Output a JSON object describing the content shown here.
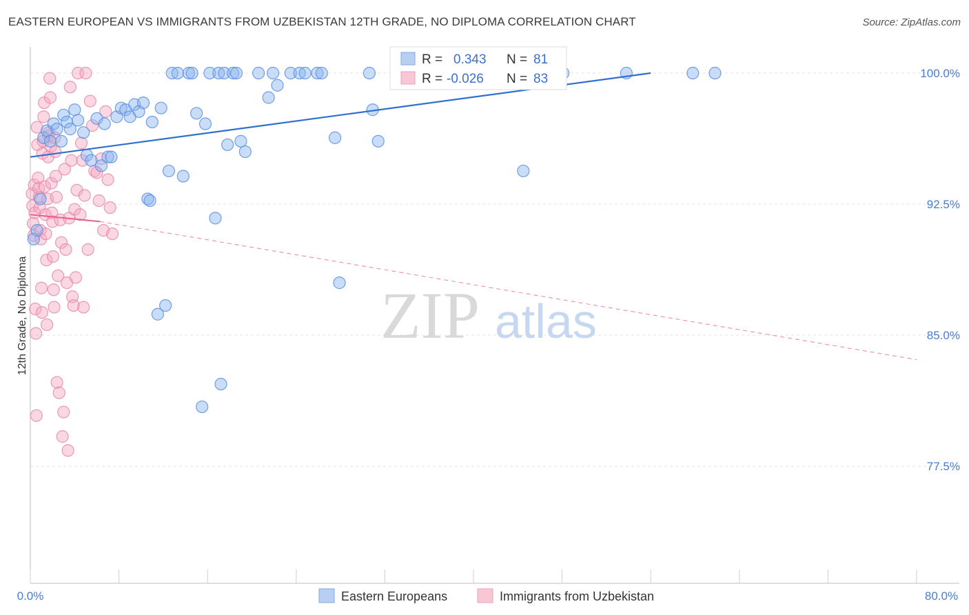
{
  "header": {
    "title": "EASTERN EUROPEAN VS IMMIGRANTS FROM UZBEKISTAN 12TH GRADE, NO DIPLOMA CORRELATION CHART",
    "source": "Source: ZipAtlas.com"
  },
  "watermark": {
    "zip": "ZIP",
    "atlas": "atlas"
  },
  "colors": {
    "blue": "#8ab4f0",
    "blue_stroke": "#5b8fe0",
    "blue_line": "#2f6fd0",
    "pink": "#f4a9c1",
    "pink_stroke": "#e88aa8",
    "pink_line": "#e8608d",
    "axis_label": "#4a7bd1",
    "grid": "#e3e3e3"
  },
  "chart_data": {
    "type": "scatter",
    "title": "EASTERN EUROPEAN VS IMMIGRANTS FROM UZBEKISTAN 12TH GRADE, NO DIPLOMA CORRELATION CHART",
    "ylabel": "12th Grade, No Diploma",
    "xlabel": "",
    "xlim": [
      0,
      80
    ],
    "ylim": [
      70.8,
      101.5
    ],
    "x_tick_labels": [
      "0.0%",
      "80.0%"
    ],
    "y_ticks": [
      77.5,
      85.0,
      92.5,
      100.0
    ],
    "y_tick_labels": [
      "77.5%",
      "85.0%",
      "92.5%",
      "100.0%"
    ],
    "legend": [
      {
        "name": "Eastern Europeans",
        "r_label": "R =",
        "r_value": "0.343",
        "n_label": "N =",
        "n_value": "81"
      },
      {
        "name": "Immigrants from Uzbekistan",
        "r_label": "R =",
        "r_value": "-0.026",
        "n_label": "N =",
        "n_value": "83"
      }
    ],
    "series": [
      {
        "name": "Eastern Europeans",
        "trend": {
          "x": [
            0.0,
            56.0
          ],
          "y": [
            95.2,
            100.0
          ]
        },
        "points": [
          [
            0.3,
            90.5
          ],
          [
            0.6,
            91.0
          ],
          [
            0.9,
            92.8
          ],
          [
            1.2,
            96.3
          ],
          [
            1.5,
            96.7
          ],
          [
            1.8,
            96.1
          ],
          [
            2.1,
            97.1
          ],
          [
            2.4,
            96.8
          ],
          [
            2.8,
            96.1
          ],
          [
            3.0,
            97.6
          ],
          [
            3.3,
            97.2
          ],
          [
            3.6,
            96.8
          ],
          [
            4.0,
            97.9
          ],
          [
            4.3,
            97.3
          ],
          [
            4.8,
            96.6
          ],
          [
            5.1,
            95.3
          ],
          [
            5.5,
            95.0
          ],
          [
            6.0,
            97.4
          ],
          [
            6.4,
            94.7
          ],
          [
            6.7,
            97.1
          ],
          [
            7.0,
            95.2
          ],
          [
            7.3,
            95.2
          ],
          [
            7.8,
            97.5
          ],
          [
            8.2,
            98.0
          ],
          [
            8.6,
            97.9
          ],
          [
            9.0,
            97.5
          ],
          [
            9.4,
            98.2
          ],
          [
            9.8,
            97.8
          ],
          [
            10.2,
            98.3
          ],
          [
            10.6,
            92.8
          ],
          [
            10.8,
            92.7
          ],
          [
            11.0,
            97.2
          ],
          [
            11.5,
            86.2
          ],
          [
            11.8,
            98.0
          ],
          [
            12.2,
            86.7
          ],
          [
            12.5,
            94.4
          ],
          [
            12.8,
            100.0
          ],
          [
            13.3,
            100.0
          ],
          [
            13.8,
            94.1
          ],
          [
            14.3,
            100.0
          ],
          [
            14.6,
            100.0
          ],
          [
            15.0,
            97.7
          ],
          [
            15.5,
            80.9
          ],
          [
            15.8,
            97.1
          ],
          [
            16.2,
            100.0
          ],
          [
            16.7,
            91.7
          ],
          [
            17.0,
            100.0
          ],
          [
            17.2,
            82.2
          ],
          [
            17.5,
            100.0
          ],
          [
            17.8,
            95.9
          ],
          [
            18.3,
            100.0
          ],
          [
            18.6,
            100.0
          ],
          [
            19.0,
            96.1
          ],
          [
            19.4,
            95.5
          ],
          [
            20.6,
            100.0
          ],
          [
            21.5,
            98.6
          ],
          [
            21.9,
            100.0
          ],
          [
            22.3,
            99.3
          ],
          [
            23.5,
            100.0
          ],
          [
            24.3,
            100.0
          ],
          [
            24.8,
            100.0
          ],
          [
            25.9,
            100.0
          ],
          [
            26.3,
            100.0
          ],
          [
            27.5,
            96.3
          ],
          [
            27.9,
            88.0
          ],
          [
            30.6,
            100.0
          ],
          [
            30.9,
            97.9
          ],
          [
            31.4,
            96.1
          ],
          [
            33.1,
            100.0
          ],
          [
            34.1,
            100.0
          ],
          [
            34.6,
            100.0
          ],
          [
            39.1,
            100.0
          ],
          [
            40.6,
            100.0
          ],
          [
            44.5,
            94.4
          ],
          [
            45.4,
            100.0
          ],
          [
            46.9,
            100.0
          ],
          [
            47.4,
            100.0
          ],
          [
            48.1,
            100.0
          ],
          [
            53.8,
            100.0
          ],
          [
            59.8,
            100.0
          ],
          [
            61.8,
            100.0
          ]
        ]
      },
      {
        "name": "Immigrants from Uzbekistan",
        "trend": {
          "x": [
            0.0,
            6.3
          ],
          "y": [
            91.9,
            91.5
          ]
        },
        "trend_extension": {
          "x": [
            6.3,
            80.0
          ],
          "y": [
            91.5,
            83.6
          ]
        },
        "points": [
          [
            0.15,
            93.1
          ],
          [
            0.2,
            92.4
          ],
          [
            0.25,
            91.4
          ],
          [
            0.3,
            90.7
          ],
          [
            0.35,
            93.6
          ],
          [
            0.4,
            92.0
          ],
          [
            0.45,
            86.5
          ],
          [
            0.5,
            85.1
          ],
          [
            0.55,
            80.4
          ],
          [
            0.6,
            96.9
          ],
          [
            0.65,
            95.9
          ],
          [
            0.7,
            94.0
          ],
          [
            0.75,
            93.4
          ],
          [
            0.8,
            92.9
          ],
          [
            0.85,
            92.3
          ],
          [
            0.9,
            91.0
          ],
          [
            0.95,
            90.5
          ],
          [
            1.0,
            87.7
          ],
          [
            1.05,
            86.3
          ],
          [
            1.1,
            95.4
          ],
          [
            1.15,
            96.1
          ],
          [
            1.2,
            97.5
          ],
          [
            1.25,
            98.3
          ],
          [
            1.3,
            93.5
          ],
          [
            1.35,
            91.9
          ],
          [
            1.4,
            90.8
          ],
          [
            1.45,
            89.3
          ],
          [
            1.5,
            85.6
          ],
          [
            1.55,
            92.8
          ],
          [
            1.6,
            95.2
          ],
          [
            1.65,
            96.4
          ],
          [
            1.7,
            96.6
          ],
          [
            1.75,
            99.7
          ],
          [
            1.8,
            98.6
          ],
          [
            1.85,
            95.8
          ],
          [
            1.9,
            93.7
          ],
          [
            1.95,
            92.0
          ],
          [
            2.0,
            91.5
          ],
          [
            2.05,
            89.5
          ],
          [
            2.1,
            87.6
          ],
          [
            2.15,
            86.6
          ],
          [
            2.2,
            96.3
          ],
          [
            2.25,
            95.5
          ],
          [
            2.3,
            94.1
          ],
          [
            2.35,
            92.9
          ],
          [
            2.4,
            82.3
          ],
          [
            2.5,
            88.4
          ],
          [
            2.6,
            81.7
          ],
          [
            2.7,
            91.6
          ],
          [
            2.8,
            90.3
          ],
          [
            2.9,
            79.2
          ],
          [
            3.0,
            80.6
          ],
          [
            3.1,
            94.5
          ],
          [
            3.2,
            89.9
          ],
          [
            3.3,
            88.0
          ],
          [
            3.4,
            78.4
          ],
          [
            3.5,
            91.7
          ],
          [
            3.6,
            99.2
          ],
          [
            3.7,
            95.0
          ],
          [
            3.8,
            87.2
          ],
          [
            3.9,
            86.7
          ],
          [
            4.0,
            92.2
          ],
          [
            4.1,
            88.3
          ],
          [
            4.2,
            93.3
          ],
          [
            4.3,
            100.0
          ],
          [
            4.5,
            91.9
          ],
          [
            4.6,
            96.0
          ],
          [
            4.7,
            95.0
          ],
          [
            4.8,
            86.6
          ],
          [
            4.9,
            93.0
          ],
          [
            5.0,
            100.0
          ],
          [
            5.2,
            89.9
          ],
          [
            5.4,
            98.4
          ],
          [
            5.6,
            97.0
          ],
          [
            5.8,
            94.4
          ],
          [
            6.0,
            94.3
          ],
          [
            6.2,
            92.7
          ],
          [
            6.4,
            95.1
          ],
          [
            6.6,
            91.0
          ],
          [
            6.8,
            97.8
          ],
          [
            7.0,
            93.9
          ],
          [
            7.2,
            92.3
          ],
          [
            7.4,
            90.8
          ]
        ]
      }
    ]
  }
}
